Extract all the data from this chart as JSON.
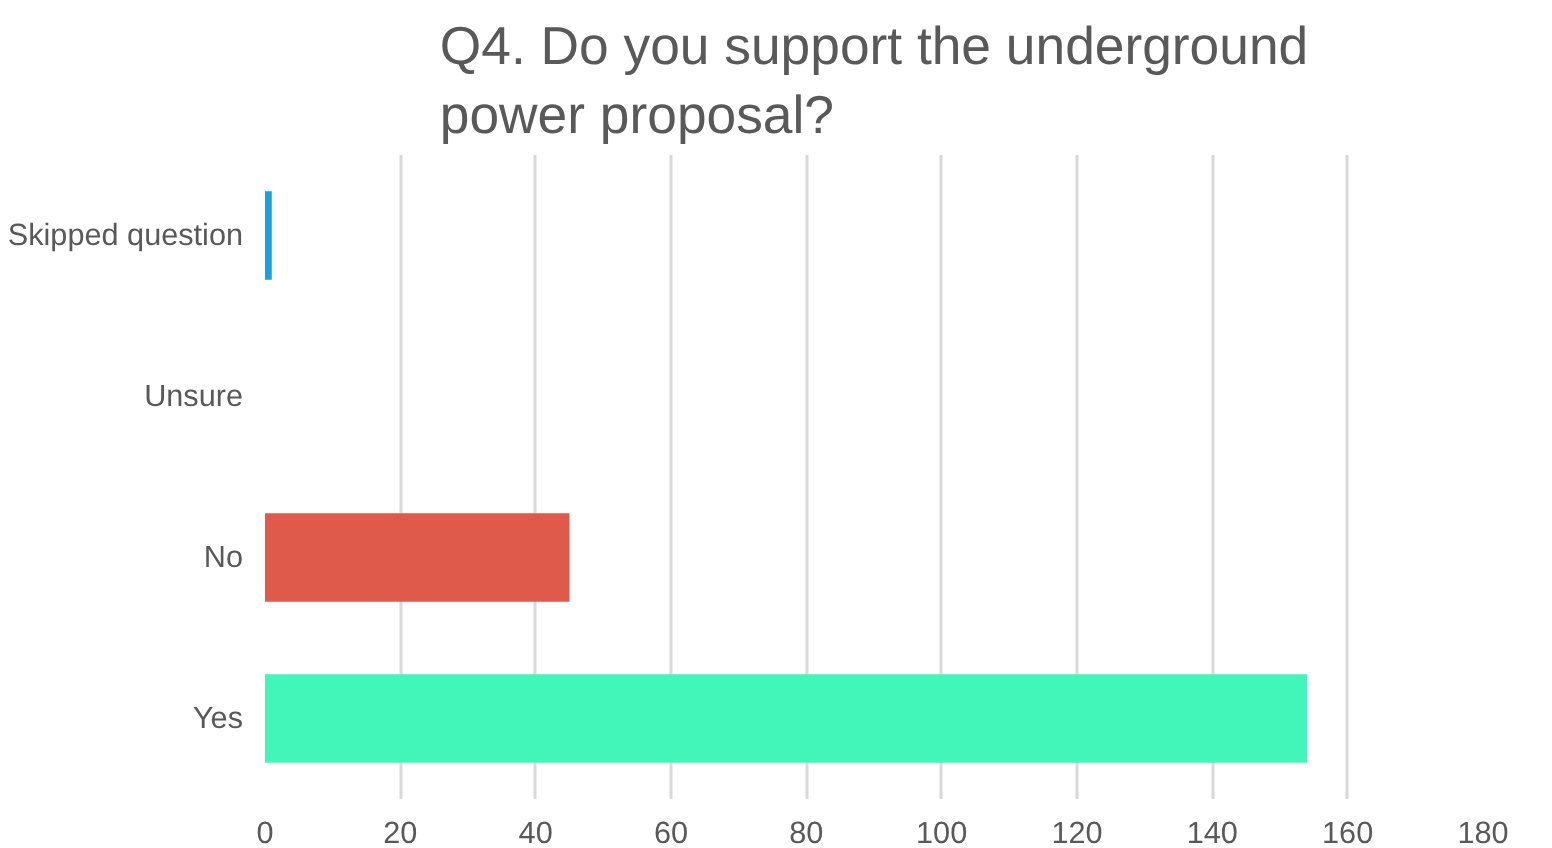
{
  "chart_data": {
    "type": "bar",
    "orientation": "horizontal",
    "title": "Q4. Do you support the underground\npower proposal?",
    "categories": [
      "Skipped question",
      "Unsure",
      "No",
      "Yes"
    ],
    "values": [
      1,
      0,
      45,
      154
    ],
    "colors": [
      "#1b9fd8",
      "#e05a4b",
      "#e05a4b",
      "#42f5b9"
    ],
    "xlim": [
      0,
      180
    ],
    "xticks": [
      0,
      20,
      40,
      60,
      80,
      100,
      120,
      140,
      160,
      180
    ],
    "grid": "x"
  }
}
